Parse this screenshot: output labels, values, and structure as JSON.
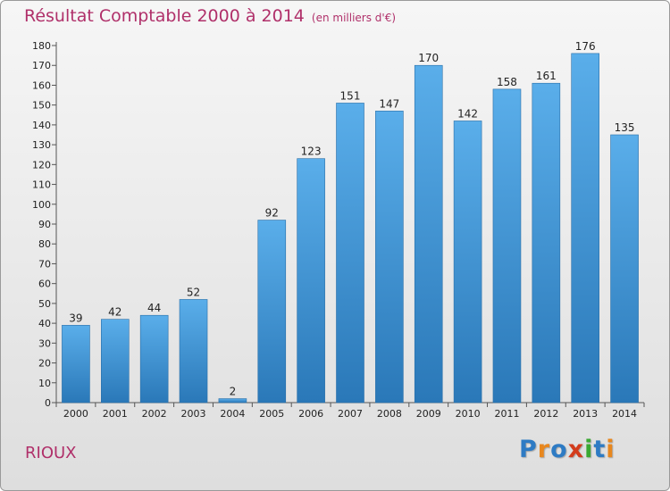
{
  "title": "Résultat Comptable 2000 à 2014",
  "subtitle": "(en milliers d'€)",
  "commune": "RIOUX",
  "logo": {
    "text": "Proxiti",
    "letter_colors": [
      "#2e7bc4",
      "#e8871e",
      "#2e7bc4",
      "#d33c1c",
      "#3aa832",
      "#2e7bc4",
      "#e8871e"
    ]
  },
  "colors": {
    "title": "#b0306a",
    "bar_light": "#5aaeea",
    "bar_dark": "#2a78b8"
  },
  "chart_data": {
    "type": "bar",
    "categories": [
      "2000",
      "2001",
      "2002",
      "2003",
      "2004",
      "2005",
      "2006",
      "2007",
      "2008",
      "2009",
      "2010",
      "2011",
      "2012",
      "2013",
      "2014"
    ],
    "values": [
      39,
      42,
      44,
      52,
      2,
      92,
      123,
      151,
      147,
      170,
      142,
      158,
      161,
      176,
      135
    ],
    "ylim": [
      0,
      180
    ],
    "yticks": [
      0,
      10,
      20,
      30,
      40,
      50,
      60,
      70,
      80,
      90,
      100,
      110,
      120,
      130,
      140,
      150,
      160,
      170,
      180
    ],
    "grid": false,
    "data_labels": true
  }
}
